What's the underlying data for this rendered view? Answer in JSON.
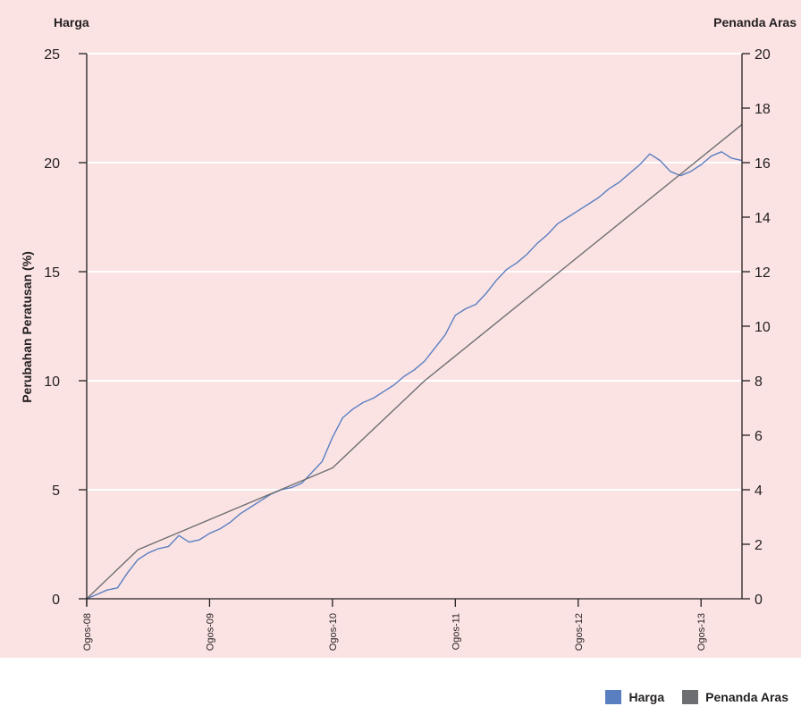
{
  "chart_data": {
    "type": "line",
    "left_axis_title": "Harga",
    "right_axis_title": "Penanda Aras",
    "ylabel": "Perubahan Peratusan (%)",
    "x_tick_labels": [
      "Ogos-08",
      "Ogos-09",
      "Ogos-10",
      "Ogos-11",
      "Ogos-12",
      "Ogos-13"
    ],
    "x_ticks": [
      "2008-08",
      "2009-08",
      "2010-08",
      "2011-08",
      "2012-08",
      "2013-08"
    ],
    "xlim": [
      "2008-08",
      "2013-12"
    ],
    "y_left": {
      "lim": [
        0,
        25
      ],
      "ticks": [
        0,
        5,
        10,
        15,
        20,
        25
      ]
    },
    "y_right": {
      "lim": [
        0,
        20
      ],
      "ticks": [
        0,
        2,
        4,
        6,
        8,
        10,
        12,
        14,
        16,
        18,
        20
      ]
    },
    "grid": "horizontal",
    "legend_placement": "bottom-right",
    "background_color": "#fbe3e4",
    "series": [
      {
        "name": "Harga",
        "axis": "left",
        "color": "#5a7fc0",
        "points": [
          [
            "2008-08",
            0.0
          ],
          [
            "2008-09",
            0.2
          ],
          [
            "2008-10",
            0.4
          ],
          [
            "2008-11",
            0.5
          ],
          [
            "2008-12",
            1.2
          ],
          [
            "2009-01",
            1.8
          ],
          [
            "2009-02",
            2.1
          ],
          [
            "2009-03",
            2.3
          ],
          [
            "2009-04",
            2.4
          ],
          [
            "2009-05",
            2.9
          ],
          [
            "2009-06",
            2.6
          ],
          [
            "2009-07",
            2.7
          ],
          [
            "2009-08",
            3.0
          ],
          [
            "2009-09",
            3.2
          ],
          [
            "2009-10",
            3.5
          ],
          [
            "2009-11",
            3.9
          ],
          [
            "2009-12",
            4.2
          ],
          [
            "2010-01",
            4.5
          ],
          [
            "2010-02",
            4.8
          ],
          [
            "2010-03",
            5.0
          ],
          [
            "2010-04",
            5.1
          ],
          [
            "2010-05",
            5.3
          ],
          [
            "2010-06",
            5.8
          ],
          [
            "2010-07",
            6.3
          ],
          [
            "2010-08",
            7.4
          ],
          [
            "2010-09",
            8.3
          ],
          [
            "2010-10",
            8.7
          ],
          [
            "2010-11",
            9.0
          ],
          [
            "2010-12",
            9.2
          ],
          [
            "2011-01",
            9.5
          ],
          [
            "2011-02",
            9.8
          ],
          [
            "2011-03",
            10.2
          ],
          [
            "2011-04",
            10.5
          ],
          [
            "2011-05",
            10.9
          ],
          [
            "2011-06",
            11.5
          ],
          [
            "2011-07",
            12.1
          ],
          [
            "2011-08",
            13.0
          ],
          [
            "2011-09",
            13.3
          ],
          [
            "2011-10",
            13.5
          ],
          [
            "2011-11",
            14.0
          ],
          [
            "2011-12",
            14.6
          ],
          [
            "2012-01",
            15.1
          ],
          [
            "2012-02",
            15.4
          ],
          [
            "2012-03",
            15.8
          ],
          [
            "2012-04",
            16.3
          ],
          [
            "2012-05",
            16.7
          ],
          [
            "2012-06",
            17.2
          ],
          [
            "2012-07",
            17.5
          ],
          [
            "2012-08",
            17.8
          ],
          [
            "2012-09",
            18.1
          ],
          [
            "2012-10",
            18.4
          ],
          [
            "2012-11",
            18.8
          ],
          [
            "2012-12",
            19.1
          ],
          [
            "2013-01",
            19.5
          ],
          [
            "2013-02",
            19.9
          ],
          [
            "2013-03",
            20.4
          ],
          [
            "2013-04",
            20.1
          ],
          [
            "2013-05",
            19.6
          ],
          [
            "2013-06",
            19.4
          ],
          [
            "2013-07",
            19.6
          ],
          [
            "2013-08",
            19.9
          ],
          [
            "2013-09",
            20.3
          ],
          [
            "2013-10",
            20.5
          ],
          [
            "2013-11",
            20.2
          ],
          [
            "2013-12",
            20.1
          ]
        ]
      },
      {
        "name": "Penanda Aras",
        "axis": "right",
        "color": "#6d6e71",
        "points": [
          [
            "2008-08",
            0.0
          ],
          [
            "2009-01",
            1.8
          ],
          [
            "2010-08",
            4.8
          ],
          [
            "2011-05",
            8.0
          ],
          [
            "2013-12",
            17.4
          ]
        ]
      }
    ]
  }
}
